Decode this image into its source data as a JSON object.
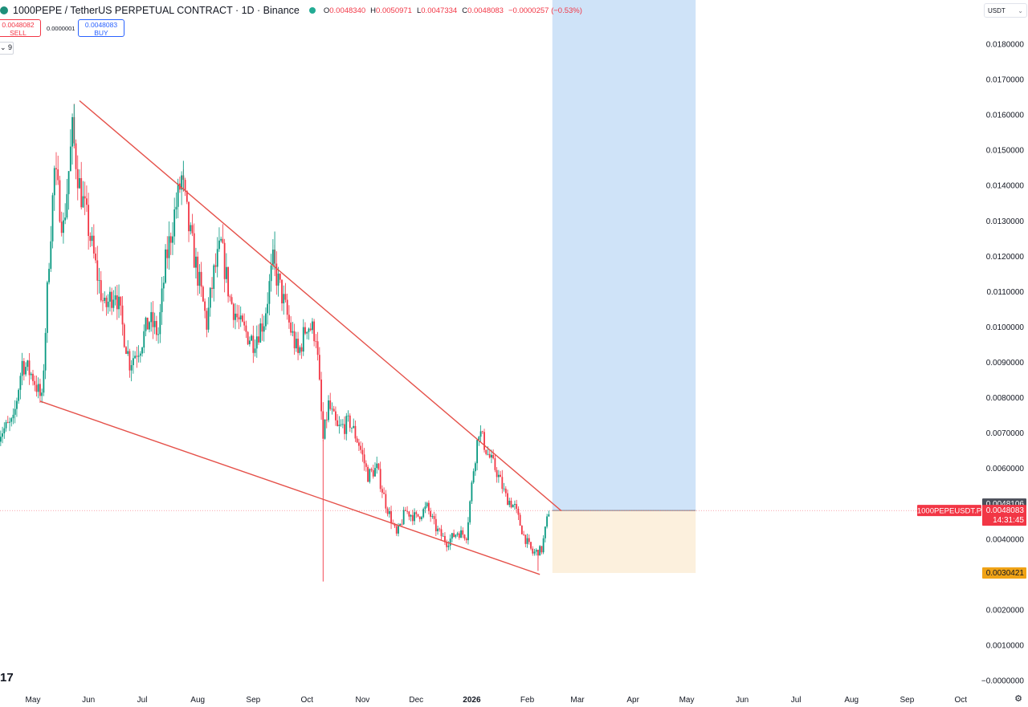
{
  "header": {
    "symbol_title": "1000PEPE / TetherUS PERPETUAL CONTRACT · 1D · Binance",
    "ohlc": {
      "o_label": "O",
      "o": "0.0048340",
      "h_label": "H",
      "h": "0.0050971",
      "l_label": "L",
      "l": "0.0047334",
      "c_label": "C",
      "c": "0.0048083",
      "change": "−0.0000257 (−0.53%)"
    }
  },
  "trade": {
    "sell_price": "0.0048082",
    "sell_label": "SELL",
    "spread": "0.0000001",
    "buy_price": "0.0048083",
    "buy_label": "BUY"
  },
  "indicator": {
    "label": "9"
  },
  "currency": {
    "label": "USDT",
    "chevron": "⌄"
  },
  "footer": {
    "tv_logo": "17",
    "settings_icon": "⚙"
  },
  "colors": {
    "up": "#089981",
    "down": "#f23645",
    "trend": "#e5514a",
    "profit_zone": "#cfe3f8",
    "stop_zone": "#fcf0dd",
    "stop_badge": "#f0a316"
  },
  "chart_data": {
    "type": "candlestick",
    "symbol": "1000PEPEUSDT.P",
    "interval": "1D",
    "y_ticks": [
      "0.0180000",
      "0.0170000",
      "0.0160000",
      "0.0150000",
      "0.0140000",
      "0.0130000",
      "0.0120000",
      "0.0110000",
      "0.0100000",
      "0.0090000",
      "0.0080000",
      "0.0070000",
      "0.0060000",
      "0.0040000",
      "0.0020000",
      "0.0010000",
      "−0.0000000"
    ],
    "x_labels": [
      {
        "label": "May",
        "date": "2025-05-01"
      },
      {
        "label": "Jun",
        "date": "2025-06-01"
      },
      {
        "label": "Jul",
        "date": "2025-07-01"
      },
      {
        "label": "Aug",
        "date": "2025-08-01"
      },
      {
        "label": "Sep",
        "date": "2025-09-01"
      },
      {
        "label": "Oct",
        "date": "2025-10-01"
      },
      {
        "label": "Nov",
        "date": "2025-11-01"
      },
      {
        "label": "Dec",
        "date": "2025-12-01"
      },
      {
        "label": "2026",
        "date": "2026-01-01",
        "bold": true
      },
      {
        "label": "Feb",
        "date": "2026-02-01"
      },
      {
        "label": "Mar",
        "date": "2026-03-01"
      },
      {
        "label": "Apr",
        "date": "2026-04-01"
      },
      {
        "label": "May",
        "date": "2026-05-01"
      },
      {
        "label": "Jun",
        "date": "2026-06-01"
      },
      {
        "label": "Jul",
        "date": "2026-07-01"
      },
      {
        "label": "Aug",
        "date": "2026-08-01"
      },
      {
        "label": "Sep",
        "date": "2026-09-01"
      },
      {
        "label": "Oct",
        "date": "2026-10-01"
      }
    ],
    "price_series": [
      [
        "2025-04-12",
        0.007
      ],
      [
        "2025-04-20",
        0.0073
      ],
      [
        "2025-04-25",
        0.009
      ],
      [
        "2025-05-01",
        0.0086
      ],
      [
        "2025-05-06",
        0.0079
      ],
      [
        "2025-05-10",
        0.012
      ],
      [
        "2025-05-13",
        0.0144
      ],
      [
        "2025-05-18",
        0.0128
      ],
      [
        "2025-05-23",
        0.0155
      ],
      [
        "2025-05-27",
        0.014
      ],
      [
        "2025-06-01",
        0.0128
      ],
      [
        "2025-06-05",
        0.0117
      ],
      [
        "2025-06-10",
        0.0105
      ],
      [
        "2025-06-16",
        0.0111
      ],
      [
        "2025-06-20",
        0.01
      ],
      [
        "2025-06-24",
        0.009
      ],
      [
        "2025-06-30",
        0.0095
      ],
      [
        "2025-07-05",
        0.0102
      ],
      [
        "2025-07-10",
        0.0098
      ],
      [
        "2025-07-14",
        0.0118
      ],
      [
        "2025-07-19",
        0.0132
      ],
      [
        "2025-07-23",
        0.0142
      ],
      [
        "2025-07-27",
        0.0128
      ],
      [
        "2025-08-02",
        0.0112
      ],
      [
        "2025-08-06",
        0.0101
      ],
      [
        "2025-08-10",
        0.0115
      ],
      [
        "2025-08-14",
        0.0123
      ],
      [
        "2025-08-19",
        0.0108
      ],
      [
        "2025-08-25",
        0.01
      ],
      [
        "2025-09-01",
        0.0096
      ],
      [
        "2025-09-07",
        0.0102
      ],
      [
        "2025-09-12",
        0.0118
      ],
      [
        "2025-09-17",
        0.0109
      ],
      [
        "2025-09-21",
        0.0101
      ],
      [
        "2025-09-26",
        0.0092
      ],
      [
        "2025-10-01",
        0.0101
      ],
      [
        "2025-10-06",
        0.0098
      ],
      [
        "2025-10-10",
        0.0068
      ],
      [
        "2025-10-13",
        0.0078
      ],
      [
        "2025-10-18",
        0.0071
      ],
      [
        "2025-10-25",
        0.0073
      ],
      [
        "2025-10-30",
        0.0067
      ],
      [
        "2025-11-04",
        0.0058
      ],
      [
        "2025-11-09",
        0.006
      ],
      [
        "2025-11-14",
        0.005
      ],
      [
        "2025-11-20",
        0.0041
      ],
      [
        "2025-11-25",
        0.0048
      ],
      [
        "2025-12-01",
        0.0046
      ],
      [
        "2025-12-07",
        0.0049
      ],
      [
        "2025-12-12",
        0.0043
      ],
      [
        "2025-12-18",
        0.0039
      ],
      [
        "2025-12-24",
        0.0042
      ],
      [
        "2025-12-29",
        0.0041
      ],
      [
        "2026-01-02",
        0.006
      ],
      [
        "2026-01-05",
        0.0071
      ],
      [
        "2026-01-10",
        0.0064
      ],
      [
        "2026-01-15",
        0.0059
      ],
      [
        "2026-01-20",
        0.0052
      ],
      [
        "2026-01-25",
        0.0049
      ],
      [
        "2026-01-30",
        0.0041
      ],
      [
        "2026-02-04",
        0.0036
      ],
      [
        "2026-02-09",
        0.0037
      ],
      [
        "2026-02-13",
        0.0048
      ]
    ],
    "wick_events": [
      {
        "date": "2025-05-24",
        "high": 0.0163
      },
      {
        "date": "2025-07-24",
        "high": 0.0147
      },
      {
        "date": "2025-09-13",
        "high": 0.0127
      },
      {
        "date": "2025-10-10",
        "low": 0.0028
      },
      {
        "date": "2026-02-07",
        "low": 0.0031
      }
    ],
    "trendlines": [
      {
        "from": [
          "2025-05-27",
          0.0164
        ],
        "to": [
          "2026-02-20",
          0.0048
        ]
      },
      {
        "from": [
          "2025-05-05",
          0.0079
        ],
        "to": [
          "2026-02-08",
          0.003
        ]
      }
    ],
    "position": {
      "entry": 0.0048106,
      "target_top": "above 0.0180000",
      "stop": 0.0030421,
      "start": "2026-02-15",
      "end": "2026-05-06"
    },
    "current_price_line": 0.0048083,
    "price_labels": {
      "entry": "0.0048106",
      "symbol_tag": "1000PEPEUSDT.P",
      "last": "0.0048083",
      "countdown": "14:31:45",
      "stop": "0.0030421"
    }
  }
}
